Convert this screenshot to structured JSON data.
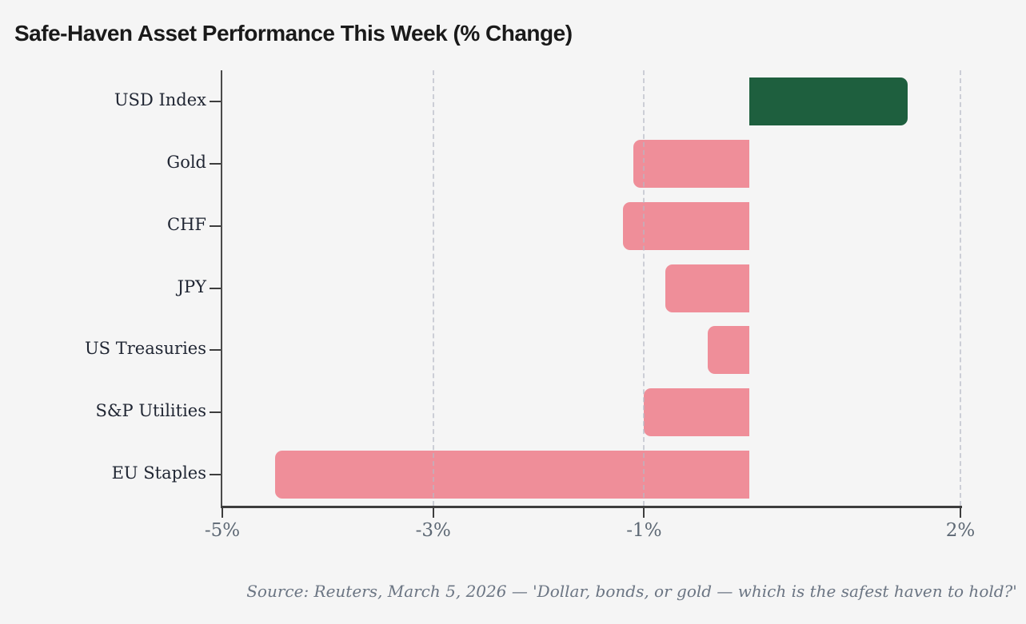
{
  "page": {
    "title": "Safe-Haven Asset Performance This Week (% Change)",
    "source_note": "Source: Reuters, March 5, 2026 — 'Dollar, bonds, or gold — which is the safest haven to hold?'"
  },
  "colors": {
    "background": "#f5f5f5",
    "positive_bar": "#1e5f3e",
    "negative_bar": "#ef8e99",
    "axis_line": "#3d3d3d",
    "gridline": "#d8d8dd",
    "tick_label": "#5d6874",
    "category_label": "#202633",
    "title_text": "#1a1a1a",
    "source_text": "#6b7583"
  },
  "chart_data": {
    "type": "bar",
    "orientation": "horizontal",
    "title": "Safe-Haven Asset Performance This Week (% Change)",
    "categories": [
      "USD Index",
      "Gold",
      "CHF",
      "JPY",
      "US Treasuries",
      "S&P Utilities",
      "EU Staples"
    ],
    "values": [
      1.5,
      -1.1,
      -1.2,
      -0.8,
      -0.4,
      -1.0,
      -4.5
    ],
    "unit": "%",
    "xlabel": "",
    "ylabel": "",
    "xlim": [
      -5,
      2
    ],
    "xticks": [
      -5,
      -3,
      -1,
      2
    ],
    "xtick_labels": [
      "-5%",
      "-3%",
      "-1%",
      "2%"
    ],
    "grid": "vertical dashed lines at -3, -1 and 2; solid left spine at -5; no line at 0",
    "legend": "none",
    "value_colors": "positive bars dark green, negative bars rose pink",
    "annotation": "Source: Reuters, March 5, 2026 — 'Dollar, bonds, or gold — which is the safest haven to hold?'"
  }
}
